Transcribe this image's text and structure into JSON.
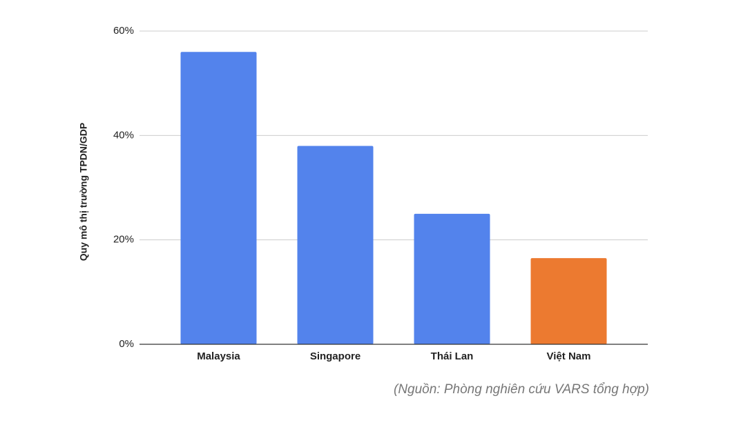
{
  "chart_data": {
    "type": "bar",
    "y_label": "Quy mô thị trường TPDN/GDP",
    "categories": [
      "Malaysia",
      "Singapore",
      "Thái Lan",
      "Việt Nam"
    ],
    "values": [
      56,
      38,
      25,
      16.5
    ],
    "colors": [
      "#5383ec",
      "#5383ec",
      "#5383ec",
      "#ec7a30"
    ],
    "ylim": [
      0,
      60
    ],
    "yticks": [
      {
        "value": 0,
        "label": "0%"
      },
      {
        "value": 20,
        "label": "20%"
      },
      {
        "value": 40,
        "label": "40%"
      },
      {
        "value": 60,
        "label": "60%"
      }
    ],
    "grid": true,
    "source": "(Nguồn: Phòng nghiên cứu VARS tổng hợp)"
  }
}
